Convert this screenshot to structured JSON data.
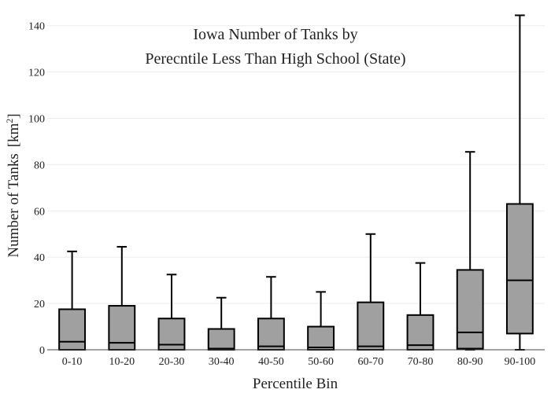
{
  "chart_data": {
    "type": "box",
    "title_lines": [
      "Iowa Number of Tanks by",
      "Perecntile Less Than High School (State)"
    ],
    "xlabel": "Percentile Bin",
    "ylabel": "Number of Tanks",
    "ylabel_unit": "[km",
    "ylabel_unit_sup": "2",
    "ylabel_unit_close": "]",
    "ylim": [
      0,
      145
    ],
    "yticks": [
      0,
      20,
      40,
      60,
      80,
      100,
      120,
      140
    ],
    "grid": true,
    "box_color": "#a0a0a0",
    "line_color": "#000000",
    "categories": [
      "0-10",
      "10-20",
      "20-30",
      "30-40",
      "40-50",
      "50-60",
      "60-70",
      "70-80",
      "80-90",
      "90-100"
    ],
    "boxes": [
      {
        "min": 0,
        "q1": 0,
        "median": 3.5,
        "q3": 17.5,
        "max": 42.5
      },
      {
        "min": 0,
        "q1": 0,
        "median": 3,
        "q3": 19,
        "max": 44.5
      },
      {
        "min": 0,
        "q1": 0,
        "median": 2.2,
        "q3": 13.5,
        "max": 32.5
      },
      {
        "min": 0,
        "q1": 0,
        "median": 0.5,
        "q3": 9,
        "max": 22.5
      },
      {
        "min": 0,
        "q1": 0,
        "median": 1.5,
        "q3": 13.5,
        "max": 31.5
      },
      {
        "min": 0,
        "q1": 0,
        "median": 1,
        "q3": 10,
        "max": 25
      },
      {
        "min": 0,
        "q1": 0,
        "median": 1.5,
        "q3": 20.5,
        "max": 50
      },
      {
        "min": 0,
        "q1": 0,
        "median": 2,
        "q3": 15,
        "max": 37.5
      },
      {
        "min": 0,
        "q1": 0.5,
        "median": 7.5,
        "q3": 34.5,
        "max": 85.5
      },
      {
        "min": 0,
        "q1": 7,
        "median": 30,
        "q3": 63,
        "max": 144.5
      }
    ]
  }
}
